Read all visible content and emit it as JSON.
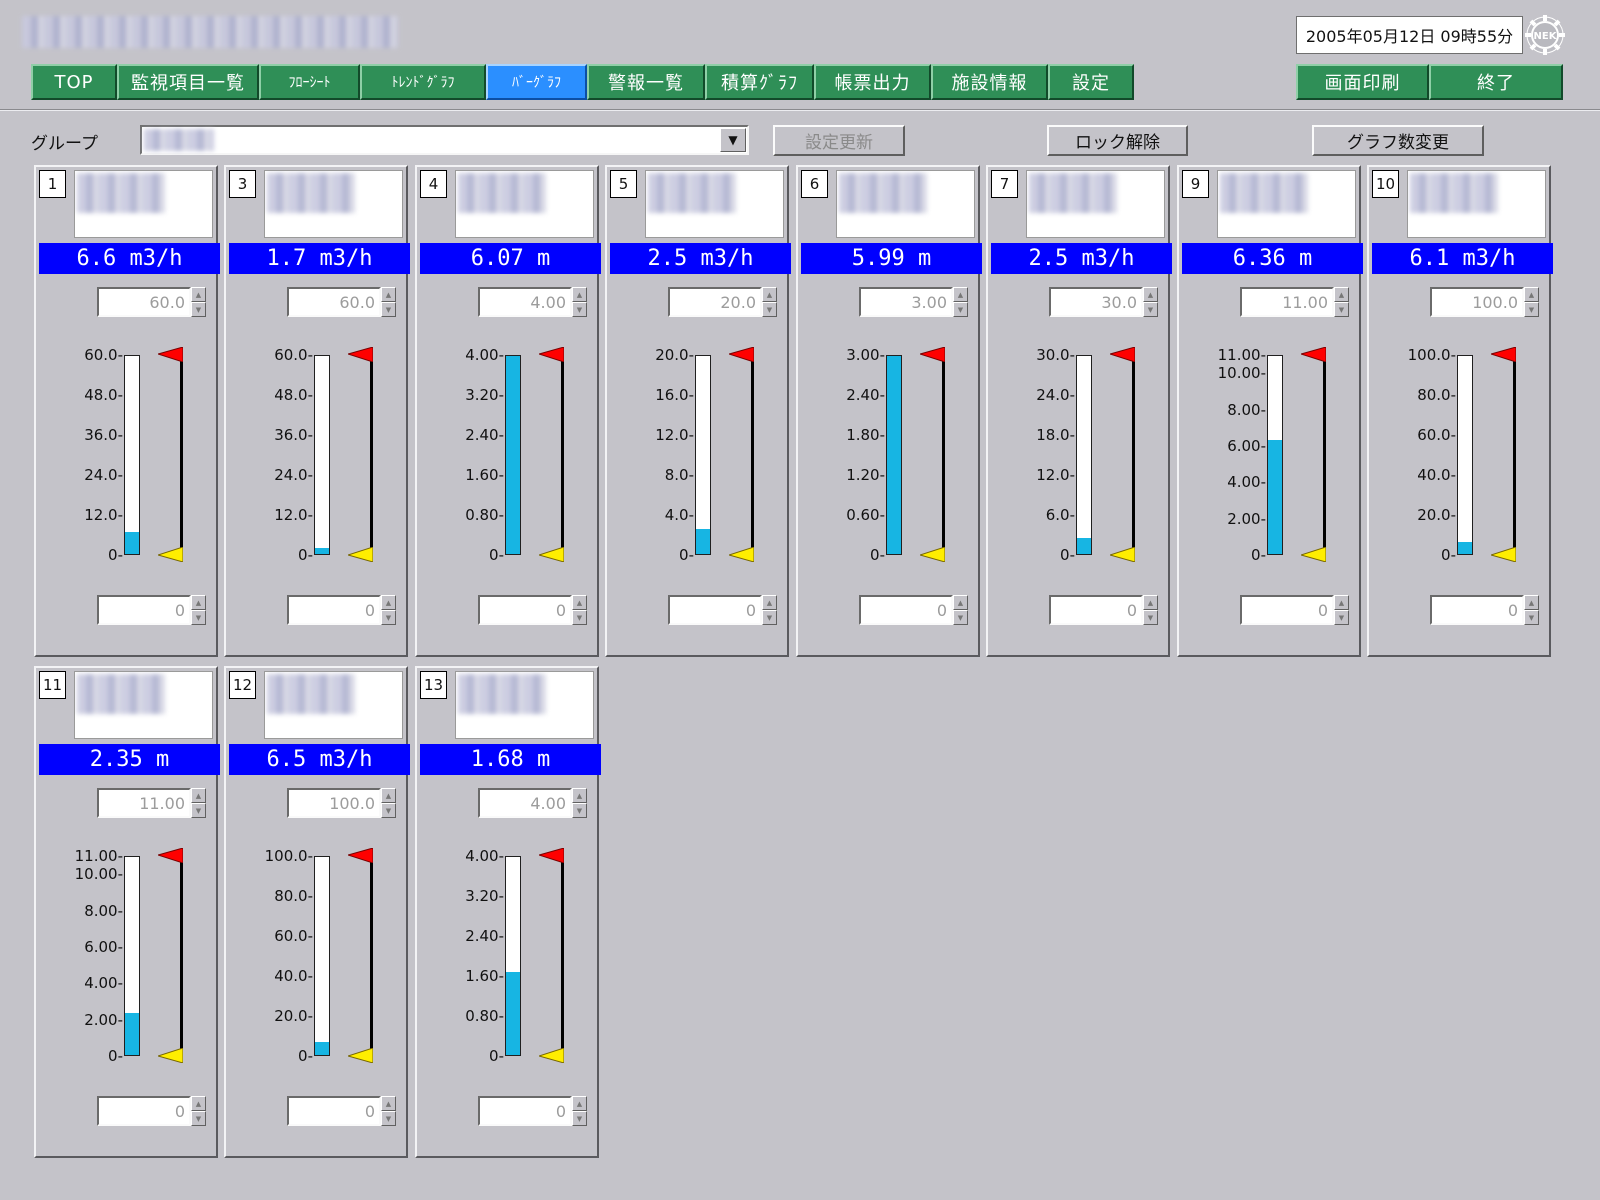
{
  "header": {
    "app_title": "",
    "datetime": "2005年05月12日 09時55分",
    "logo_text": "NEK"
  },
  "nav": [
    {
      "label": "TOP",
      "active": false,
      "small": false
    },
    {
      "label": "監視項目一覧",
      "active": false,
      "small": false
    },
    {
      "label": "ﾌﾛｰｼｰﾄ",
      "active": false,
      "small": true
    },
    {
      "label": "ﾄﾚﾝﾄﾞｸﾞﾗﾌ",
      "active": false,
      "small": true
    },
    {
      "label": "ﾊﾞｰｸﾞﾗﾌ",
      "active": true,
      "small": true
    },
    {
      "label": "警報一覧",
      "active": false,
      "small": false
    },
    {
      "label": "積算ｸﾞﾗﾌ",
      "active": false,
      "small": false
    },
    {
      "label": "帳票出力",
      "active": false,
      "small": false
    },
    {
      "label": "施設情報",
      "active": false,
      "small": false
    },
    {
      "label": "設定",
      "active": false,
      "small": false
    }
  ],
  "actions": {
    "print": "画面印刷",
    "exit": "終了"
  },
  "toolbar": {
    "group_label": "グループ",
    "group_value": "",
    "update_button": "設定更新",
    "unlock_button": "ロック解除",
    "graph_count_button": "グラフ数変更"
  },
  "colors": {
    "nav_green": "#2f8f57",
    "nav_active": "#2b8fff",
    "value_bar": "#0000ff",
    "level_fill": "#17b5e3",
    "high_flag": "#ff0000",
    "low_flag": "#ffee00"
  },
  "panels": [
    {
      "num": "1",
      "value": "6.6 m3/h",
      "max": "60.0",
      "min": "0",
      "ticks": [
        "60.0-",
        "48.0-",
        "36.0-",
        "24.0-",
        "12.0-",
        "0-"
      ],
      "level": 0.11
    },
    {
      "num": "3",
      "value": "1.7 m3/h",
      "max": "60.0",
      "min": "0",
      "ticks": [
        "60.0-",
        "48.0-",
        "36.0-",
        "24.0-",
        "12.0-",
        "0-"
      ],
      "level": 0.03
    },
    {
      "num": "4",
      "value": "6.07 m",
      "max": "4.00",
      "min": "0",
      "ticks": [
        "4.00-",
        "3.20-",
        "2.40-",
        "1.60-",
        "0.80-",
        "0-"
      ],
      "level": 1.0
    },
    {
      "num": "5",
      "value": "2.5 m3/h",
      "max": "20.0",
      "min": "0",
      "ticks": [
        "20.0-",
        "16.0-",
        "12.0-",
        "8.0-",
        "4.0-",
        "0-"
      ],
      "level": 0.125
    },
    {
      "num": "6",
      "value": "5.99 m",
      "max": "3.00",
      "min": "0",
      "ticks": [
        "3.00-",
        "2.40-",
        "1.80-",
        "1.20-",
        "0.60-",
        "0-"
      ],
      "level": 1.0
    },
    {
      "num": "7",
      "value": "2.5 m3/h",
      "max": "30.0",
      "min": "0",
      "ticks": [
        "30.0-",
        "24.0-",
        "18.0-",
        "12.0-",
        "6.0-",
        "0-"
      ],
      "level": 0.083
    },
    {
      "num": "9",
      "value": "6.36 m",
      "max": "11.00",
      "min": "0",
      "ticks": [
        "11.00-",
        "10.00-",
        "8.00-",
        "6.00-",
        "4.00-",
        "2.00-",
        "0-"
      ],
      "level": 0.578
    },
    {
      "num": "10",
      "value": "6.1 m3/h",
      "max": "100.0",
      "min": "0",
      "ticks": [
        "100.0-",
        "80.0-",
        "60.0-",
        "40.0-",
        "20.0-",
        "0-"
      ],
      "level": 0.061
    },
    {
      "num": "11",
      "value": "2.35 m",
      "max": "11.00",
      "min": "0",
      "ticks": [
        "11.00-",
        "10.00-",
        "8.00-",
        "6.00-",
        "4.00-",
        "2.00-",
        "0-"
      ],
      "level": 0.214
    },
    {
      "num": "12",
      "value": "6.5 m3/h",
      "max": "100.0",
      "min": "0",
      "ticks": [
        "100.0-",
        "80.0-",
        "60.0-",
        "40.0-",
        "20.0-",
        "0-"
      ],
      "level": 0.065
    },
    {
      "num": "13",
      "value": "1.68 m",
      "max": "4.00",
      "min": "0",
      "ticks": [
        "4.00-",
        "3.20-",
        "2.40-",
        "1.60-",
        "0.80-",
        "0-"
      ],
      "level": 0.42
    }
  ]
}
